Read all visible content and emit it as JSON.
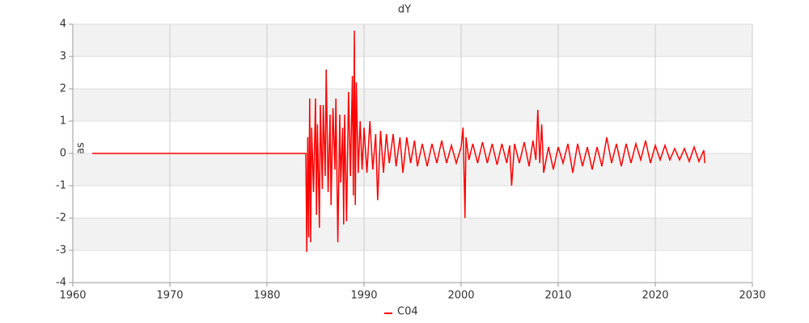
{
  "chart_data": {
    "type": "line",
    "title": "dY",
    "y_label": "mas",
    "xlim": [
      1960,
      2030
    ],
    "xticks": [
      1960,
      1970,
      1980,
      1990,
      2000,
      2010,
      2020,
      2030
    ],
    "ylim": [
      -4,
      4
    ],
    "yticks": [
      -4,
      -3,
      -2,
      -1,
      0,
      1,
      2,
      3,
      4
    ],
    "grid": true,
    "legend": "bottom",
    "x": [
      1962.0,
      1984.0,
      1984.1,
      1984.2,
      1984.3,
      1984.4,
      1984.5,
      1984.6,
      1984.8,
      1985.0,
      1985.1,
      1985.2,
      1985.4,
      1985.5,
      1985.7,
      1985.8,
      1986.0,
      1986.1,
      1986.3,
      1986.5,
      1986.6,
      1986.8,
      1987.0,
      1987.1,
      1987.3,
      1987.5,
      1987.6,
      1987.8,
      1987.9,
      1988.0,
      1988.2,
      1988.4,
      1988.6,
      1988.8,
      1988.9,
      1989.0,
      1989.1,
      1989.2,
      1989.4,
      1989.6,
      1989.8,
      1990.0,
      1990.3,
      1990.6,
      1990.9,
      1991.2,
      1991.4,
      1991.7,
      1992.0,
      1992.3,
      1992.6,
      1993.0,
      1993.3,
      1993.7,
      1994.0,
      1994.4,
      1994.8,
      1995.2,
      1995.5,
      1996.0,
      1996.5,
      1997.0,
      1997.5,
      1998.0,
      1998.5,
      1999.0,
      1999.5,
      2000.0,
      2000.2,
      2000.4,
      2000.5,
      2000.8,
      2001.2,
      2001.7,
      2002.2,
      2002.7,
      2003.2,
      2003.7,
      2004.2,
      2004.7,
      2005.0,
      2005.2,
      2005.5,
      2006.0,
      2006.5,
      2007.0,
      2007.4,
      2007.7,
      2007.9,
      2008.1,
      2008.3,
      2008.5,
      2009.0,
      2009.5,
      2010.0,
      2010.5,
      2011.0,
      2011.5,
      2012.0,
      2012.5,
      2013.0,
      2013.5,
      2014.0,
      2014.5,
      2015.0,
      2015.5,
      2016.0,
      2016.5,
      2017.0,
      2017.5,
      2018.0,
      2018.5,
      2019.0,
      2019.5,
      2020.0,
      2020.5,
      2021.0,
      2021.5,
      2022.0,
      2022.5,
      2023.0,
      2023.5,
      2024.0,
      2024.5,
      2025.0,
      2025.1
    ],
    "series": [
      {
        "name": "C04",
        "color": "#ff0000",
        "values": [
          0,
          0,
          -3.05,
          0.5,
          -2.6,
          1.7,
          -2.75,
          0.8,
          -1.2,
          1.7,
          -1.9,
          0.9,
          -2.3,
          1.5,
          -1.1,
          1.5,
          -0.7,
          2.6,
          -1.2,
          1.2,
          -1.6,
          1.4,
          -0.5,
          1.7,
          -2.75,
          1.2,
          -0.9,
          0.8,
          -2.2,
          1.2,
          -2.1,
          1.9,
          -0.7,
          2.4,
          -1.3,
          3.8,
          -1.6,
          2.2,
          -0.6,
          1.0,
          -0.5,
          0.8,
          -0.6,
          1.0,
          -0.5,
          0.6,
          -1.45,
          0.7,
          -0.6,
          0.6,
          -0.3,
          0.6,
          -0.4,
          0.5,
          -0.6,
          0.5,
          -0.3,
          0.4,
          -0.4,
          0.3,
          -0.4,
          0.3,
          -0.3,
          0.4,
          -0.3,
          0.25,
          -0.3,
          0.2,
          0.8,
          -2.0,
          0.5,
          -0.2,
          0.3,
          -0.3,
          0.35,
          -0.3,
          0.3,
          -0.35,
          0.3,
          -0.3,
          0.25,
          -1.0,
          0.3,
          -0.3,
          0.35,
          -0.4,
          0.4,
          -0.2,
          1.35,
          -0.3,
          0.9,
          -0.6,
          0.2,
          -0.5,
          0.2,
          -0.3,
          0.3,
          -0.6,
          0.3,
          -0.4,
          0.2,
          -0.5,
          0.2,
          -0.4,
          0.5,
          -0.3,
          0.3,
          -0.4,
          0.3,
          -0.3,
          0.3,
          -0.2,
          0.4,
          -0.3,
          0.25,
          -0.2,
          0.25,
          -0.2,
          0.15,
          -0.2,
          0.15,
          -0.25,
          0.2,
          -0.25,
          0.1,
          -0.3
        ]
      }
    ]
  }
}
